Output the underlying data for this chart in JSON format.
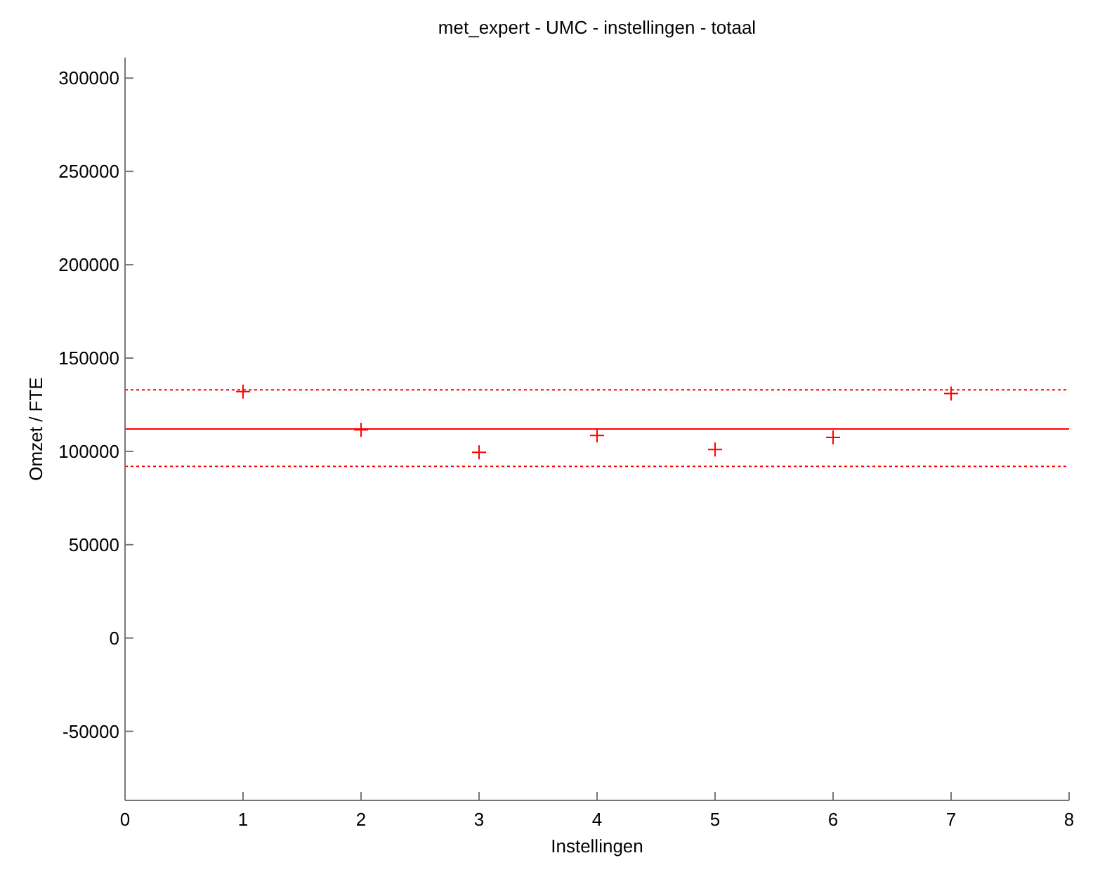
{
  "chart_data": {
    "type": "scatter",
    "title": "met_expert - UMC - instellingen - totaal",
    "xlabel": "Instellingen",
    "ylabel": "Omzet / FTE",
    "x": [
      1,
      2,
      3,
      4,
      5,
      6,
      7
    ],
    "series": [
      {
        "color": "#ff0000",
        "values": [
          132000,
          111500,
          99500,
          108500,
          101000,
          107500,
          131000
        ]
      }
    ],
    "marker": "cross",
    "xlim": [
      0,
      8
    ],
    "xticks": [
      0,
      1,
      2,
      3,
      4,
      5,
      6,
      7,
      8
    ],
    "ylim": [
      -87000,
      311000
    ],
    "yticks": [
      -50000,
      0,
      50000,
      100000,
      150000,
      200000,
      250000,
      300000
    ],
    "ref_lines": [
      {
        "axis": "y",
        "value": 133000,
        "color": "#ff0000",
        "line_style": "dotted"
      },
      {
        "axis": "y",
        "value": 112000,
        "color": "#ff0000",
        "line_style": "solid"
      },
      {
        "axis": "y",
        "value": 92000,
        "color": "#ff0000",
        "line_style": "dotted"
      }
    ],
    "grid": false
  }
}
